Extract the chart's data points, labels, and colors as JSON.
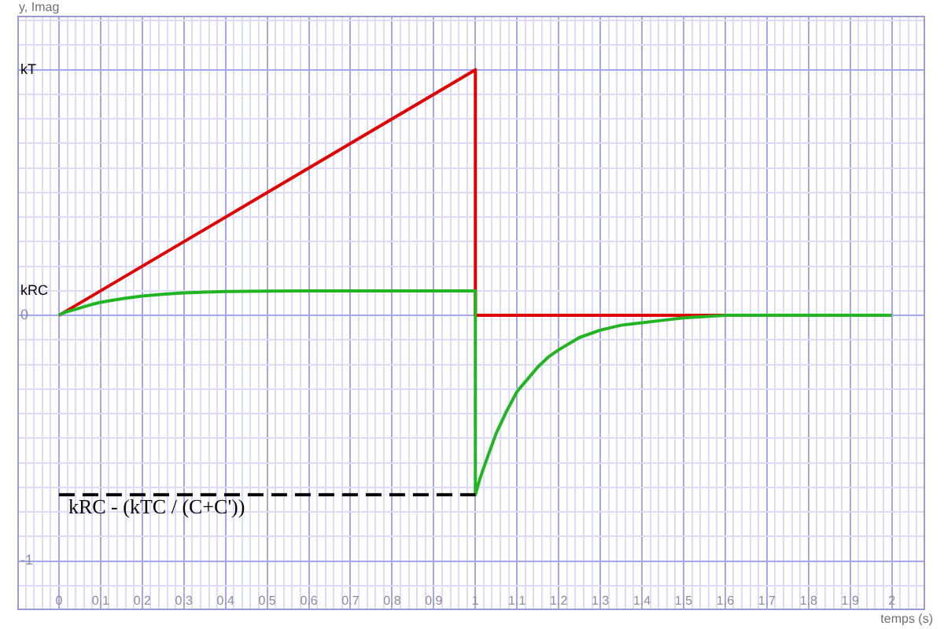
{
  "chart_data": {
    "type": "line",
    "xlabel": "temps (s)",
    "ylabel": "y, Imag",
    "series": [
      {
        "color": "#e00000",
        "x": [
          0,
          1,
          1,
          1.65
        ],
        "values": [
          0,
          1,
          0,
          0
        ]
      },
      {
        "color": "#22b422",
        "x": [
          0,
          0.01,
          0.02,
          0.04,
          0.06,
          0.08,
          0.1,
          0.13,
          0.16,
          0.2,
          0.25,
          0.3,
          0.4,
          0.5,
          0.6,
          1,
          1,
          1.01,
          1.02,
          1.035,
          1.05,
          1.075,
          1.1,
          1.125,
          1.15,
          1.175,
          1.2,
          1.25,
          1.3,
          1.35,
          1.4,
          1.45,
          1.5,
          1.6,
          1.7,
          2
        ],
        "values": [
          0,
          0.01,
          0.015,
          0.025,
          0.035,
          0.045,
          0.053,
          0.062,
          0.07,
          0.079,
          0.086,
          0.092,
          0.097,
          0.099,
          0.1,
          0.1,
          -0.73,
          -0.67,
          -0.62,
          -0.55,
          -0.48,
          -0.39,
          -0.31,
          -0.26,
          -0.21,
          -0.17,
          -0.14,
          -0.09,
          -0.06,
          -0.04,
          -0.03,
          -0.02,
          -0.01,
          0,
          0,
          0
        ]
      },
      {
        "name": "kRC - (kTC / (C+C'))",
        "color": "#000000",
        "line_style": "dashed",
        "x": [
          0,
          1
        ],
        "values": [
          -0.73,
          -0.73
        ]
      }
    ],
    "xlim": [
      -0.1,
      2.08
    ],
    "ylim": [
      -1.2,
      1.22
    ],
    "xticks": [
      {
        "value": -0.08,
        "label": null
      },
      {
        "value": -0.06,
        "label": null
      },
      {
        "value": -0.04,
        "label": null
      },
      {
        "value": -0.02,
        "label": null
      },
      0,
      {
        "value": 0.02,
        "label": null
      },
      {
        "value": 0.04,
        "label": null
      },
      {
        "value": 0.06,
        "label": null
      },
      {
        "value": 0.08,
        "label": null
      },
      0.1,
      {
        "value": 0.12,
        "label": null
      },
      {
        "value": 0.14,
        "label": null
      },
      {
        "value": 0.16,
        "label": null
      },
      {
        "value": 0.18,
        "label": null
      },
      0.2,
      {
        "value": 0.22,
        "label": null
      },
      {
        "value": 0.24,
        "label": null
      },
      {
        "value": 0.26,
        "label": null
      },
      {
        "value": 0.28,
        "label": null
      },
      0.3,
      {
        "value": 0.32,
        "label": null
      },
      {
        "value": 0.34,
        "label": null
      },
      {
        "value": 0.36,
        "label": null
      },
      {
        "value": 0.38,
        "label": null
      },
      0.4,
      {
        "value": 0.42,
        "label": null
      },
      {
        "value": 0.44,
        "label": null
      },
      {
        "value": 0.46,
        "label": null
      },
      {
        "value": 0.48,
        "label": null
      },
      0.5,
      {
        "value": 0.52,
        "label": null
      },
      {
        "value": 0.54,
        "label": null
      },
      {
        "value": 0.56,
        "label": null
      },
      {
        "value": 0.58,
        "label": null
      },
      0.6,
      {
        "value": 0.62,
        "label": null
      },
      {
        "value": 0.64,
        "label": null
      },
      {
        "value": 0.66,
        "label": null
      },
      {
        "value": 0.68,
        "label": null
      },
      0.7,
      {
        "value": 0.72,
        "label": null
      },
      {
        "value": 0.74,
        "label": null
      },
      {
        "value": 0.76,
        "label": null
      },
      {
        "value": 0.78,
        "label": null
      },
      0.8,
      {
        "value": 0.82,
        "label": null
      },
      {
        "value": 0.84,
        "label": null
      },
      {
        "value": 0.86,
        "label": null
      },
      {
        "value": 0.88,
        "label": null
      },
      0.9,
      {
        "value": 0.92,
        "label": null
      },
      {
        "value": 0.94,
        "label": null
      },
      {
        "value": 0.96,
        "label": null
      },
      {
        "value": 0.98,
        "label": null
      },
      1,
      {
        "value": 1.02,
        "label": null
      },
      {
        "value": 1.04,
        "label": null
      },
      {
        "value": 1.06,
        "label": null
      },
      {
        "value": 1.08,
        "label": null
      },
      1.1,
      {
        "value": 1.12,
        "label": null
      },
      {
        "value": 1.14,
        "label": null
      },
      {
        "value": 1.16,
        "label": null
      },
      {
        "value": 1.18,
        "label": null
      },
      1.2,
      {
        "value": 1.22,
        "label": null
      },
      {
        "value": 1.24,
        "label": null
      },
      {
        "value": 1.26,
        "label": null
      },
      {
        "value": 1.28,
        "label": null
      },
      1.3,
      {
        "value": 1.32,
        "label": null
      },
      {
        "value": 1.34,
        "label": null
      },
      {
        "value": 1.36,
        "label": null
      },
      {
        "value": 1.38,
        "label": null
      },
      1.4,
      {
        "value": 1.42,
        "label": null
      },
      {
        "value": 1.44,
        "label": null
      },
      {
        "value": 1.46,
        "label": null
      },
      {
        "value": 1.48,
        "label": null
      },
      1.5,
      {
        "value": 1.52,
        "label": null
      },
      {
        "value": 1.54,
        "label": null
      },
      {
        "value": 1.56,
        "label": null
      },
      {
        "value": 1.58,
        "label": null
      },
      1.6,
      {
        "value": 1.62,
        "label": null
      },
      {
        "value": 1.64,
        "label": null
      },
      {
        "value": 1.66,
        "label": null
      },
      {
        "value": 1.68,
        "label": null
      },
      1.7,
      {
        "value": 1.72,
        "label": null
      },
      {
        "value": 1.74,
        "label": null
      },
      {
        "value": 1.76,
        "label": null
      },
      {
        "value": 1.78,
        "label": null
      },
      1.8,
      {
        "value": 1.82,
        "label": null
      },
      {
        "value": 1.84,
        "label": null
      },
      {
        "value": 1.86,
        "label": null
      },
      {
        "value": 1.88,
        "label": null
      },
      1.9,
      {
        "value": 1.92,
        "label": null
      },
      {
        "value": 1.94,
        "label": null
      },
      {
        "value": 1.96,
        "label": null
      },
      {
        "value": 1.98,
        "label": null
      },
      2,
      {
        "value": 2.02,
        "label": null
      },
      {
        "value": 2.04,
        "label": null
      },
      {
        "value": 2.06,
        "label": null
      }
    ],
    "yticks": [
      {
        "value": -1.1,
        "label": null
      },
      -1,
      {
        "value": -0.9,
        "label": null
      },
      {
        "value": -0.8,
        "label": null
      },
      {
        "value": -0.7,
        "label": null
      },
      {
        "value": -0.6,
        "label": null
      },
      {
        "value": -0.5,
        "label": null
      },
      {
        "value": -0.4,
        "label": null
      },
      {
        "value": -0.3,
        "label": null
      },
      {
        "value": -0.2,
        "label": null
      },
      {
        "value": -0.1,
        "label": null
      },
      0,
      {
        "value": 0.1,
        "label": "kRC"
      },
      {
        "value": 0.2,
        "label": null
      },
      {
        "value": 0.3,
        "label": null
      },
      {
        "value": 0.4,
        "label": null
      },
      {
        "value": 0.5,
        "label": null
      },
      {
        "value": 0.6,
        "label": null
      },
      {
        "value": 0.7,
        "label": null
      },
      {
        "value": 0.8,
        "label": null
      },
      {
        "value": 0.9,
        "label": null
      },
      {
        "value": 1,
        "label": "kT"
      },
      {
        "value": 1.1,
        "label": null
      },
      {
        "value": 1.2,
        "label": null
      }
    ],
    "grid": true,
    "legend": false,
    "marker": "none",
    "line_style": "solid"
  }
}
